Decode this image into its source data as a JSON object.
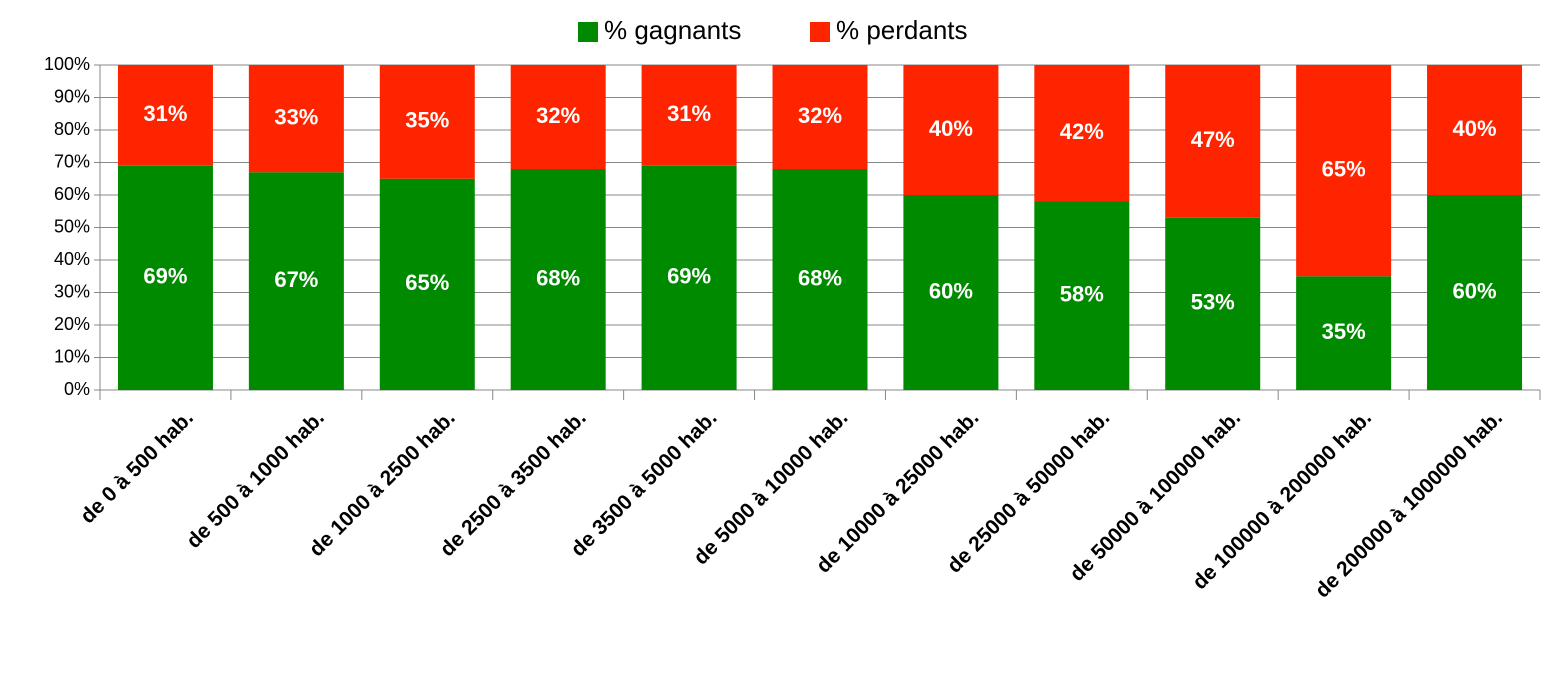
{
  "chart_data": {
    "type": "stacked_bar",
    "categories": [
      "de 0 à 500 hab.",
      "de 500 à 1000 hab.",
      "de 1000 à 2500 hab.",
      "de 2500 à 3500 hab.",
      "de 3500 à 5000 hab.",
      "de 5000 à 10000 hab.",
      "de 10000 à 25000 hab.",
      "de 25000 à 50000 hab.",
      "de 50000 à 100000 hab.",
      "de 100000 à 200000 hab.",
      "de 200000 à 1000000 hab."
    ],
    "series": [
      {
        "name": "% gagnants",
        "color": "#008a00",
        "values": [
          69,
          67,
          65,
          68,
          69,
          68,
          60,
          58,
          53,
          35,
          60
        ],
        "value_labels": [
          "69%",
          "67%",
          "65%",
          "68%",
          "69%",
          "68%",
          "60%",
          "58%",
          "53%",
          "35%",
          "60%"
        ]
      },
      {
        "name": "% perdants",
        "color": "#ff2400",
        "values": [
          31,
          33,
          35,
          32,
          31,
          32,
          40,
          42,
          47,
          65,
          40
        ],
        "value_labels": [
          "31%",
          "33%",
          "35%",
          "32%",
          "31%",
          "32%",
          "40%",
          "42%",
          "47%",
          "65%",
          "40%"
        ]
      }
    ],
    "ylim": [
      0,
      100
    ],
    "yticks": [
      {
        "value": 0,
        "label": "0%"
      },
      {
        "value": 10,
        "label": "10%"
      },
      {
        "value": 20,
        "label": "20%"
      },
      {
        "value": 30,
        "label": "30%"
      },
      {
        "value": 40,
        "label": "40%"
      },
      {
        "value": 50,
        "label": "50%"
      },
      {
        "value": 60,
        "label": "60%"
      },
      {
        "value": 70,
        "label": "70%"
      },
      {
        "value": 80,
        "label": "80%"
      },
      {
        "value": 90,
        "label": "90%"
      },
      {
        "value": 100,
        "label": "100%"
      }
    ],
    "legend": "top"
  }
}
